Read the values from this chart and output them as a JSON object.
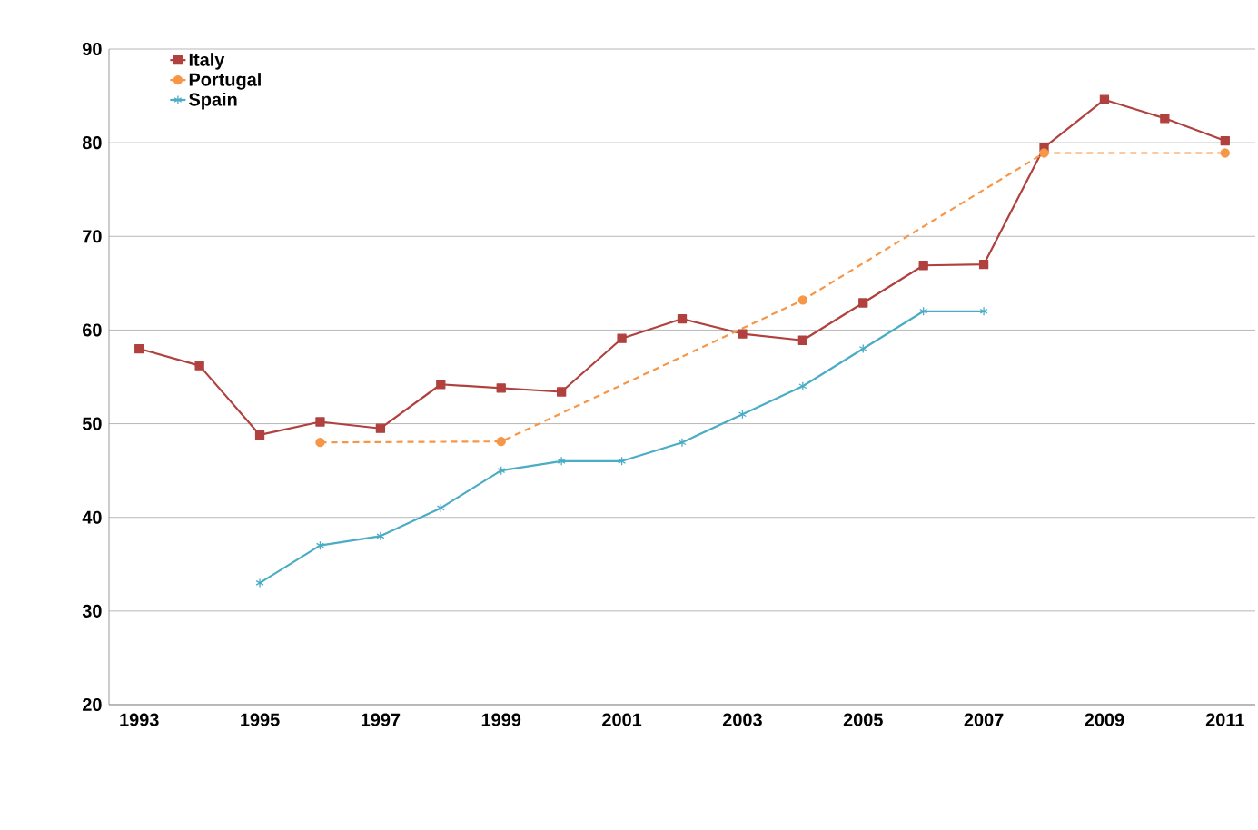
{
  "chart_data": {
    "type": "line",
    "categories": [
      "1993",
      null,
      "1995",
      null,
      "1997",
      null,
      "1999",
      null,
      "2001",
      null,
      "2003",
      null,
      "2005",
      null,
      "2007",
      null,
      "2009",
      null,
      "2011"
    ],
    "series": [
      {
        "name": "Italy",
        "color": "#b0413e",
        "marker": "square",
        "line_style": "solid",
        "values": [
          58.0,
          56.2,
          48.8,
          50.2,
          49.5,
          54.2,
          53.8,
          53.4,
          59.1,
          61.2,
          59.6,
          58.9,
          62.9,
          66.9,
          67.0,
          79.5,
          84.6,
          82.6,
          80.2
        ]
      },
      {
        "name": "Portugal",
        "color": "#f79646",
        "marker": "circle",
        "line_style": "dashed",
        "values": [
          null,
          null,
          null,
          48.0,
          null,
          null,
          48.1,
          null,
          null,
          null,
          null,
          63.2,
          null,
          null,
          null,
          78.9,
          null,
          null,
          78.9
        ]
      },
      {
        "name": "Spain",
        "color": "#4bacc6",
        "marker": "cross",
        "line_style": "solid",
        "values": [
          null,
          null,
          33,
          37,
          38,
          41,
          45,
          46,
          46,
          48,
          51,
          54,
          58,
          62,
          62,
          null,
          null,
          null,
          null
        ]
      }
    ],
    "ylim": [
      20,
      90
    ],
    "yticks": [
      20,
      30,
      40,
      50,
      60,
      70,
      80,
      90
    ],
    "grid": "y",
    "legend": "top left"
  }
}
